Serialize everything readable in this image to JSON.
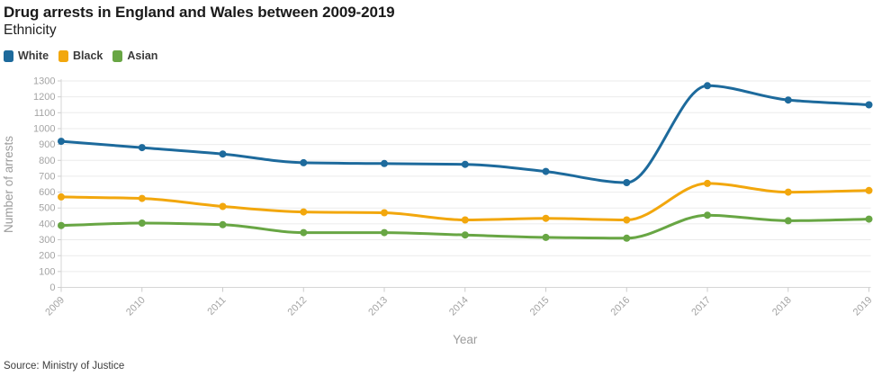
{
  "header": {
    "title": "Drug arrests in England and Wales between 2009-2019",
    "subtitle": "Ethnicity"
  },
  "chart_data": {
    "type": "line",
    "title": "Drug arrests in England and Wales between 2009-2019",
    "subtitle": "Ethnicity",
    "x": [
      "2009",
      "2010",
      "2011",
      "2012",
      "2013",
      "2014",
      "2015",
      "2016",
      "2017",
      "2018",
      "2019"
    ],
    "series": [
      {
        "name": "White",
        "color": "#1d6a9c",
        "values": [
          920,
          880,
          840,
          785,
          780,
          775,
          730,
          660,
          1270,
          1180,
          1150
        ]
      },
      {
        "name": "Black",
        "color": "#f2a70d",
        "values": [
          570,
          560,
          510,
          475,
          470,
          425,
          435,
          425,
          655,
          600,
          610
        ]
      },
      {
        "name": "Asian",
        "color": "#68a644",
        "values": [
          390,
          405,
          395,
          345,
          345,
          330,
          315,
          310,
          455,
          420,
          430
        ]
      }
    ],
    "xlabel": "Year",
    "ylabel": "Number of arrests",
    "ylim": [
      0,
      1300
    ],
    "ytick_step": 100,
    "grid": "horizontal",
    "legend_position": "top-left",
    "line_smoothing": "monotone",
    "source": "Source: Ministry of Justice"
  },
  "style_colors": {
    "gridline": "#ebebeb",
    "axis_line": "#d6d6d6",
    "tick": "#cccccc",
    "tick_label": "#a4a4a4",
    "axis_title": "#9c9c9c"
  }
}
